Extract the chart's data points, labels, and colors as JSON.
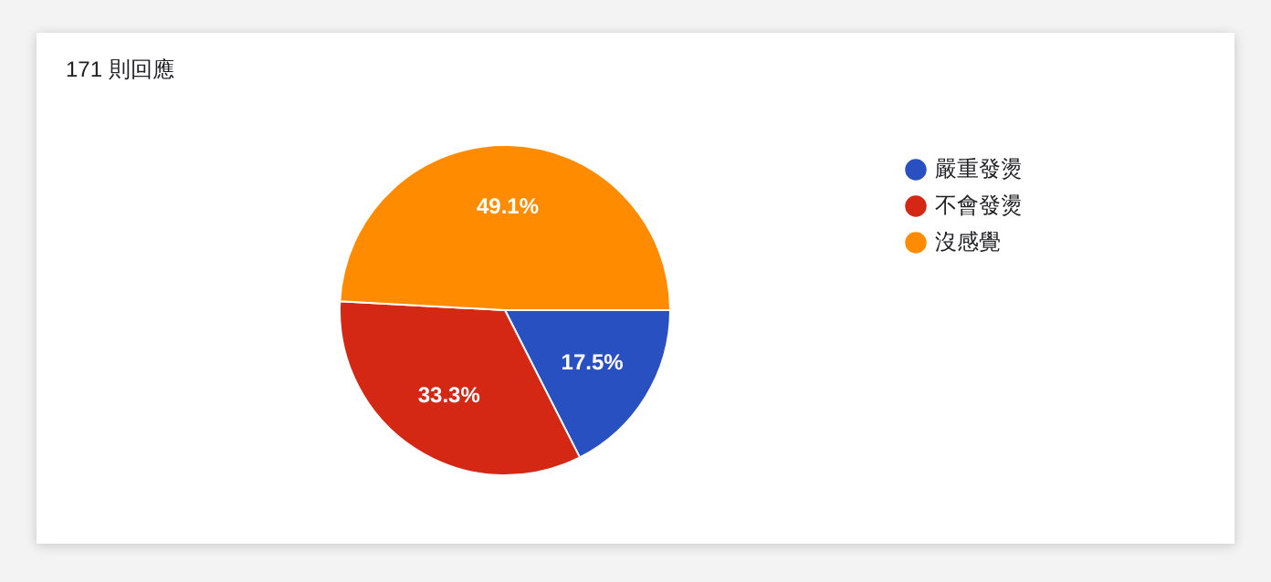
{
  "chart_data": {
    "type": "pie",
    "title": "171 則回應",
    "categories": [
      "嚴重發燙",
      "不會發燙",
      "沒感覺"
    ],
    "values": [
      17.5,
      33.3,
      49.1
    ],
    "colors": [
      "#2850c0",
      "#d42815",
      "#ff8b00"
    ],
    "value_labels": [
      "17.5%",
      "33.3%",
      "49.1%"
    ],
    "legend": "right"
  }
}
